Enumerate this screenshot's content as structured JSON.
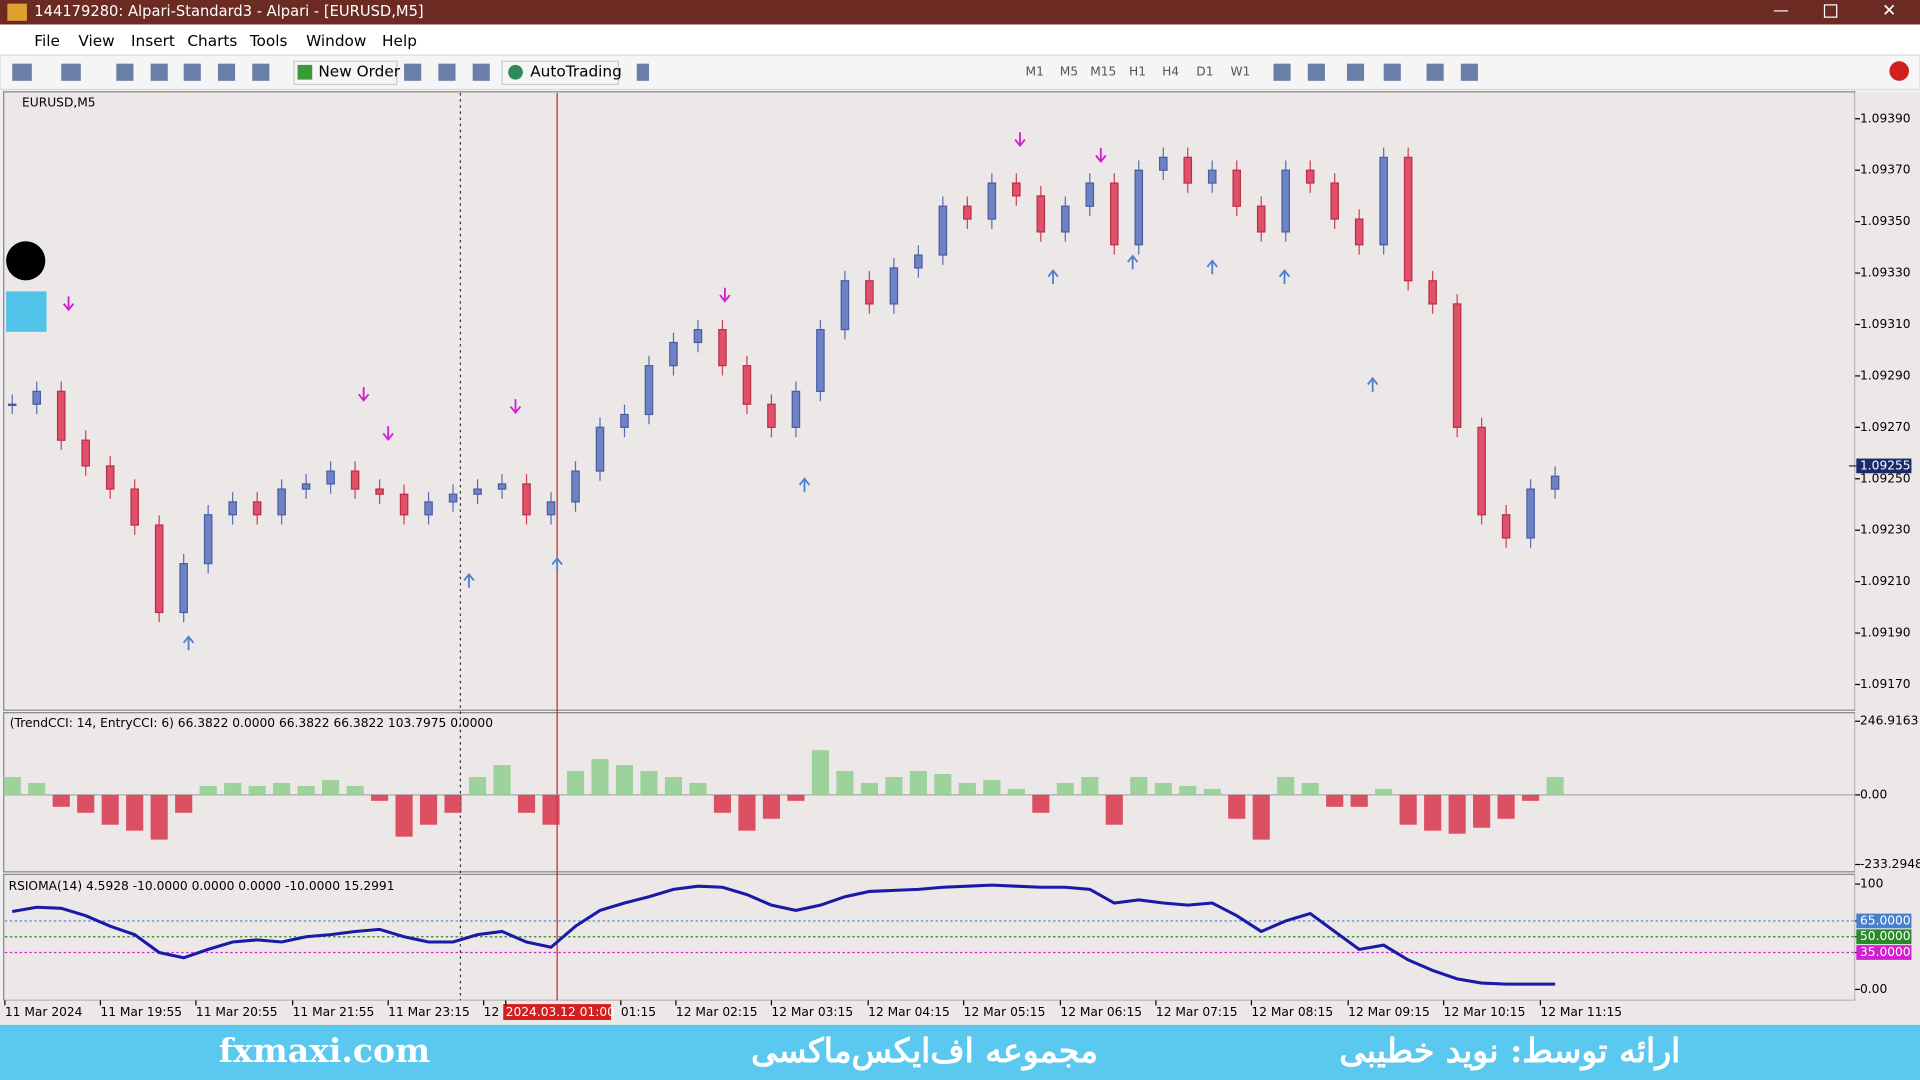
{
  "window": {
    "title": "144179280: Alpari-Standard3 - Alpari - [EURUSD,M5]",
    "menu": [
      "File",
      "View",
      "Insert",
      "Charts",
      "Tools",
      "Window",
      "Help"
    ]
  },
  "toolbar": {
    "new_order": "New Order",
    "autotrading": "AutoTrading",
    "timeframes": [
      "M1",
      "M5",
      "M15",
      "H1",
      "H4",
      "D1",
      "W1"
    ]
  },
  "chart_data": [
    {
      "type": "candlestick",
      "title": "EURUSD,M5",
      "ylim": [
        1.0916,
        1.094
      ],
      "yticks": [
        {
          "value": 1.0939,
          "label": "1.09390"
        },
        {
          "value": 1.0937,
          "label": "1.09370"
        },
        {
          "value": 1.0935,
          "label": "1.09350"
        },
        {
          "value": 1.0933,
          "label": "1.09330"
        },
        {
          "value": 1.0931,
          "label": "1.09310"
        },
        {
          "value": 1.0929,
          "label": "1.09290"
        },
        {
          "value": 1.0927,
          "label": "1.09270"
        },
        {
          "value": 1.0925,
          "label": "1.09250"
        },
        {
          "value": 1.0923,
          "label": "1.09230"
        },
        {
          "value": 1.0921,
          "label": "1.09210"
        },
        {
          "value": 1.0919,
          "label": "1.09190"
        },
        {
          "value": 1.0917,
          "label": "1.09170"
        }
      ],
      "current_price": {
        "value": 1.09255,
        "label": "1.09255"
      },
      "values": [
        1.09279,
        1.09284,
        1.09265,
        1.09255,
        1.09246,
        1.09232,
        1.09198,
        1.09217,
        1.09236,
        1.09241,
        1.09236,
        1.09246,
        1.09248,
        1.09253,
        1.09246,
        1.09244,
        1.09236,
        1.09241,
        1.09244,
        1.09246,
        1.09248,
        1.09236,
        1.09241,
        1.09253,
        1.0927,
        1.09275,
        1.09294,
        1.09303,
        1.09308,
        1.09294,
        1.09279,
        1.0927,
        1.09284,
        1.09308,
        1.09327,
        1.09318,
        1.09332,
        1.09337,
        1.09356,
        1.09351,
        1.09365,
        1.0936,
        1.09346,
        1.09356,
        1.09365,
        1.09341,
        1.0937,
        1.09375,
        1.09365,
        1.0937,
        1.09356,
        1.09346,
        1.0937,
        1.09365,
        1.09351,
        1.09341,
        1.09375,
        1.09327,
        1.09318,
        1.0927,
        1.09236,
        1.09227,
        1.09246,
        1.09251
      ]
    },
    {
      "type": "bar",
      "title": "(TrendCCI: 14, EntryCCI: 6) 66.3822 0.0000 66.3822 66.3822 103.7975 0.0000",
      "ylim": [
        -233.2948,
        246.9163
      ],
      "yticks": [
        {
          "value": 246.9163,
          "label": "246.9163"
        },
        {
          "value": 0,
          "label": "0.00"
        },
        {
          "value": -233.2948,
          "label": "-233.2948"
        }
      ],
      "values": [
        60,
        40,
        -40,
        -60,
        -100,
        -120,
        -150,
        -60,
        30,
        40,
        30,
        40,
        30,
        50,
        30,
        -20,
        -140,
        -100,
        -60,
        60,
        100,
        -60,
        -100,
        80,
        120,
        100,
        80,
        60,
        40,
        -60,
        -120,
        -80,
        -20,
        150,
        80,
        40,
        60,
        80,
        70,
        40,
        50,
        20,
        -60,
        40,
        60,
        -100,
        60,
        40,
        30,
        20,
        -80,
        -150,
        60,
        40,
        -40,
        -40,
        20,
        -100,
        -120,
        -130,
        -110,
        -80,
        -20,
        60
      ]
    },
    {
      "type": "line",
      "title": "RSIOMA(14) 4.5928 -10.0000 0.0000 0.0000 -10.0000 15.2991",
      "ylim": [
        0,
        100
      ],
      "color": "#1a1aa8",
      "yticks": [
        100,
        {
          "value": 65,
          "label": "65.0000"
        },
        {
          "value": 50,
          "label": "50.0000"
        },
        {
          "value": 35,
          "label": "35.0000"
        },
        {
          "value": 0,
          "label": "0.00"
        }
      ],
      "values": [
        74,
        78,
        77,
        70,
        60,
        52,
        35,
        30,
        38,
        45,
        47,
        45,
        50,
        52,
        55,
        57,
        50,
        45,
        45,
        52,
        55,
        45,
        40,
        60,
        75,
        82,
        88,
        95,
        98,
        97,
        90,
        80,
        75,
        80,
        88,
        93,
        94,
        95,
        97,
        98,
        99,
        98,
        97,
        97,
        95,
        82,
        85,
        82,
        80,
        82,
        70,
        55,
        65,
        72,
        55,
        38,
        42,
        28,
        18,
        10,
        6,
        5,
        5,
        5
      ]
    }
  ],
  "x_labels": [
    "11 Mar 2024",
    "11 Mar 19:55",
    "11 Mar 20:55",
    "11 Mar 21:55",
    "11 Mar 23:15",
    "12",
    "2024.03.12 01:00",
    "01:15",
    "12 Mar 02:15",
    "12 Mar 03:15",
    "12 Mar 04:15",
    "12 Mar 05:15",
    "12 Mar 06:15",
    "12 Mar 07:15",
    "12 Mar 08:15",
    "12 Mar 09:15",
    "12 Mar 10:15",
    "12 Mar 11:15"
  ],
  "footer": {
    "site": "fxmaxi.com",
    "brand": "مجموعه اف‌ایکس‌ماکسی",
    "presenter": "ارائه توسط: نوید خطیبی"
  }
}
